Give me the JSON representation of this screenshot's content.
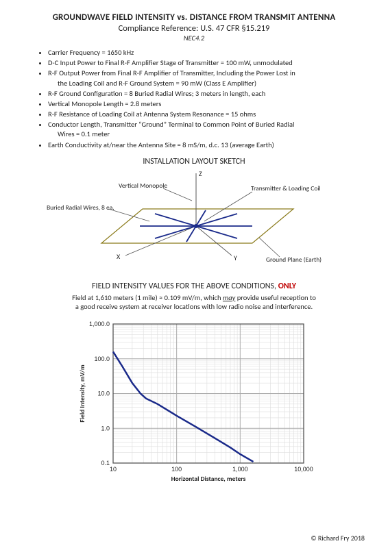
{
  "header": {
    "title": "GROUNDWAVE FIELD INTENSITY vs. DISTANCE FROM TRANSMIT ANTENNA",
    "subtitle": "Compliance Reference: U.S. 47 CFR §15.219",
    "ref": "NEC4.2"
  },
  "params": [
    "Carrier Frequency = 1650 kHz",
    "D-C Input Power to Final R-F Amplifier Stage of Transmitter = 100 mW, unmodulated",
    "R-F Output Power from Final R-F Amplifier of Transmitter, Including the Power Lost in",
    "R-F Ground Configuration = 8 Buried Radial Wires; 3 meters in length, each",
    "Vertical Monopole Length = 2.8 meters",
    "R-F Resistance of Loading Coil at Antenna System Resonance = 15 ohms",
    "Conductor Length, Transmitter “Ground” Terminal to Common Point of Buried Radial",
    "Earth Conductivity at/near the Antenna Site = 8 mS/m, d.c. 13 (average Earth)"
  ],
  "param_cont": {
    "2": "the Loading Coil and R-F Ground System = 90 mW (Class E Amplifier)",
    "6": "Wires = 0.1 meter"
  },
  "sketch": {
    "title": "INSTALLATION LAYOUT SKETCH",
    "labels": {
      "z": "Z",
      "x": "X",
      "y": "Y",
      "vm": "Vertical Monopole",
      "br": "Buried Radial Wires, 8 ea.",
      "tlc": "Transmitter & Loading Coil",
      "gp": "Ground Plane (Earth)"
    }
  },
  "section2": {
    "title_a": "FIELD INTENSITY VALUES FOR THE ABOVE CONDITIONS, ",
    "title_b": "ONLY",
    "note_a": "Field at 1,610 meters (1 mile) ≈ 0.109 mV/m, which ",
    "note_b": "may",
    "note_c": " provide useful reception to",
    "note_d": "a good receive system at receiver locations with low radio noise and interference."
  },
  "chart": {
    "type": "line-loglog",
    "xlabel": "Horizontal Distance, meters",
    "ylabel": "Field Intensity, mV/m",
    "xlim_log": [
      1,
      4
    ],
    "ylim_log": [
      -1,
      3
    ],
    "xticks": [
      10,
      100,
      1000,
      10000
    ],
    "xtick_labels": [
      "10",
      "100",
      "1,000",
      "10,000"
    ],
    "yticks": [
      0.1,
      1.0,
      10.0,
      100.0,
      1000.0
    ],
    "ytick_labels": [
      "0.1",
      "1.0",
      "10.0",
      "100.0",
      "1,000.0"
    ],
    "curve_color": "#1a2a8a",
    "grid_major_color": "#aaaaaa",
    "grid_minor_color": "#dddddd",
    "border_color": "#555555",
    "background": "#ffffff",
    "data": [
      [
        10,
        160
      ],
      [
        14,
        60
      ],
      [
        20,
        20
      ],
      [
        27,
        10
      ],
      [
        33,
        7.2
      ],
      [
        50,
        5.0
      ],
      [
        100,
        2.3
      ],
      [
        200,
        1.1
      ],
      [
        400,
        0.52
      ],
      [
        700,
        0.28
      ],
      [
        1000,
        0.18
      ],
      [
        1610,
        0.109
      ]
    ]
  },
  "copyright": "© Richard Fry 2018"
}
